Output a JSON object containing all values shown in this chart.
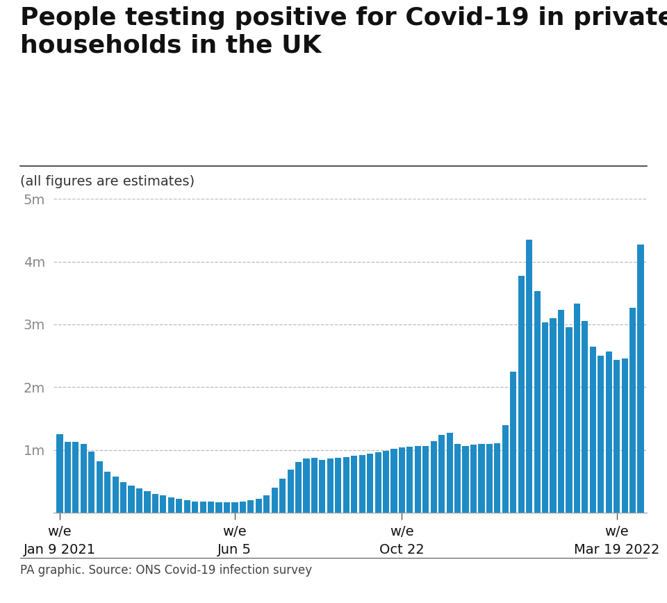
{
  "title": "People testing positive for Covid-19 in private\nhouseholds in the UK",
  "subtitle": "(all figures are estimates)",
  "source": "PA graphic. Source: ONS Covid-19 infection survey",
  "bar_color": "#1f8bc4",
  "background_color": "#ffffff",
  "ylim": [
    0,
    5000000
  ],
  "yticks": [
    1000000,
    2000000,
    3000000,
    4000000,
    5000000
  ],
  "ytick_labels": [
    "1m",
    "2m",
    "3m",
    "4m",
    "5m"
  ],
  "values": [
    1250000,
    1130000,
    1130000,
    1100000,
    970000,
    820000,
    650000,
    570000,
    480000,
    430000,
    380000,
    340000,
    300000,
    270000,
    240000,
    220000,
    200000,
    180000,
    175000,
    170000,
    165000,
    160000,
    160000,
    175000,
    195000,
    215000,
    280000,
    400000,
    540000,
    680000,
    810000,
    860000,
    870000,
    840000,
    860000,
    870000,
    880000,
    910000,
    920000,
    940000,
    960000,
    980000,
    1020000,
    1040000,
    1050000,
    1060000,
    1060000,
    1140000,
    1240000,
    1270000,
    1100000,
    1060000,
    1080000,
    1090000,
    1100000,
    1110000,
    1390000,
    2250000,
    3770000,
    4350000,
    3530000,
    3030000,
    3100000,
    3230000,
    2950000,
    3330000,
    3050000,
    2650000,
    2500000,
    2570000,
    2430000,
    2460000,
    3270000,
    4270000
  ],
  "x_tick_positions": [
    0,
    22,
    43,
    70
  ],
  "x_tick_labels": [
    "w/e\nJan 9 2021",
    "w/e\nJun 5",
    "w/e\nOct 22",
    "w/e\nMar 19 2022"
  ],
  "title_fontsize": 26,
  "subtitle_fontsize": 14,
  "source_fontsize": 12,
  "tick_label_fontsize": 14
}
